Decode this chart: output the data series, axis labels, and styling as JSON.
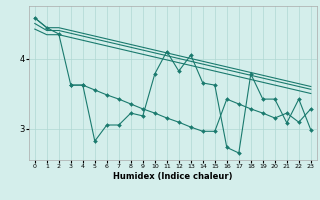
{
  "xlabel": "Humidex (Indice chaleur)",
  "xlim": [
    -0.5,
    23.5
  ],
  "ylim": [
    2.55,
    4.75
  ],
  "yticks": [
    3,
    4
  ],
  "xticks": [
    0,
    1,
    2,
    3,
    4,
    5,
    6,
    7,
    8,
    9,
    10,
    11,
    12,
    13,
    14,
    15,
    16,
    17,
    18,
    19,
    20,
    21,
    22,
    23
  ],
  "bg_color": "#d4eeeb",
  "line_color": "#1a7a6e",
  "grid_color": "#b0d8d4",
  "line1_x": [
    0,
    1,
    2,
    3,
    4,
    5,
    6,
    7,
    8,
    9,
    10,
    11,
    12,
    13,
    14,
    15,
    16,
    17,
    18,
    19,
    20,
    21,
    22,
    23
  ],
  "line1_y": [
    4.58,
    4.44,
    4.44,
    4.4,
    4.36,
    4.32,
    4.28,
    4.24,
    4.2,
    4.16,
    4.12,
    4.08,
    4.04,
    4.0,
    3.96,
    3.92,
    3.88,
    3.84,
    3.8,
    3.76,
    3.72,
    3.68,
    3.64,
    3.6
  ],
  "line2_x": [
    0,
    1,
    2,
    3,
    4,
    5,
    6,
    7,
    8,
    9,
    10,
    11,
    12,
    13,
    14,
    15,
    16,
    17,
    18,
    19,
    20,
    21,
    22,
    23
  ],
  "line2_y": [
    4.5,
    4.4,
    4.4,
    4.36,
    4.32,
    4.28,
    4.24,
    4.2,
    4.16,
    4.12,
    4.08,
    4.04,
    4.0,
    3.96,
    3.92,
    3.88,
    3.84,
    3.8,
    3.76,
    3.72,
    3.68,
    3.64,
    3.6,
    3.56
  ],
  "line3_x": [
    0,
    1,
    2,
    3,
    4,
    5,
    6,
    7,
    8,
    9,
    10,
    11,
    12,
    13,
    14,
    15,
    16,
    17,
    18,
    19,
    20,
    21,
    22,
    23
  ],
  "line3_y": [
    4.42,
    4.34,
    4.34,
    4.3,
    4.26,
    4.22,
    4.18,
    4.14,
    4.1,
    4.06,
    4.02,
    3.98,
    3.94,
    3.9,
    3.86,
    3.82,
    3.78,
    3.74,
    3.7,
    3.66,
    3.62,
    3.58,
    3.54,
    3.5
  ],
  "line4_x": [
    0,
    1,
    2,
    3,
    4,
    5,
    6,
    7,
    8,
    9,
    10,
    11,
    12,
    13,
    14,
    15,
    16,
    17,
    18,
    19,
    20,
    21,
    22,
    23
  ],
  "line4_y": [
    4.58,
    4.44,
    4.35,
    3.62,
    3.62,
    2.82,
    3.05,
    3.05,
    3.22,
    3.18,
    3.78,
    4.1,
    3.82,
    4.05,
    3.65,
    3.62,
    2.73,
    2.65,
    3.78,
    3.42,
    3.42,
    3.08,
    3.42,
    2.98
  ],
  "line5_x": [
    3,
    4,
    5,
    6,
    7,
    8,
    9,
    10,
    11,
    12,
    13,
    14,
    15,
    16,
    17,
    18,
    19,
    20,
    21,
    22,
    23
  ],
  "line5_y": [
    3.62,
    3.62,
    3.55,
    3.48,
    3.42,
    3.35,
    3.28,
    3.22,
    3.15,
    3.09,
    3.02,
    2.96,
    2.96,
    3.42,
    3.35,
    3.28,
    3.22,
    3.15,
    3.22,
    3.09,
    3.28
  ]
}
